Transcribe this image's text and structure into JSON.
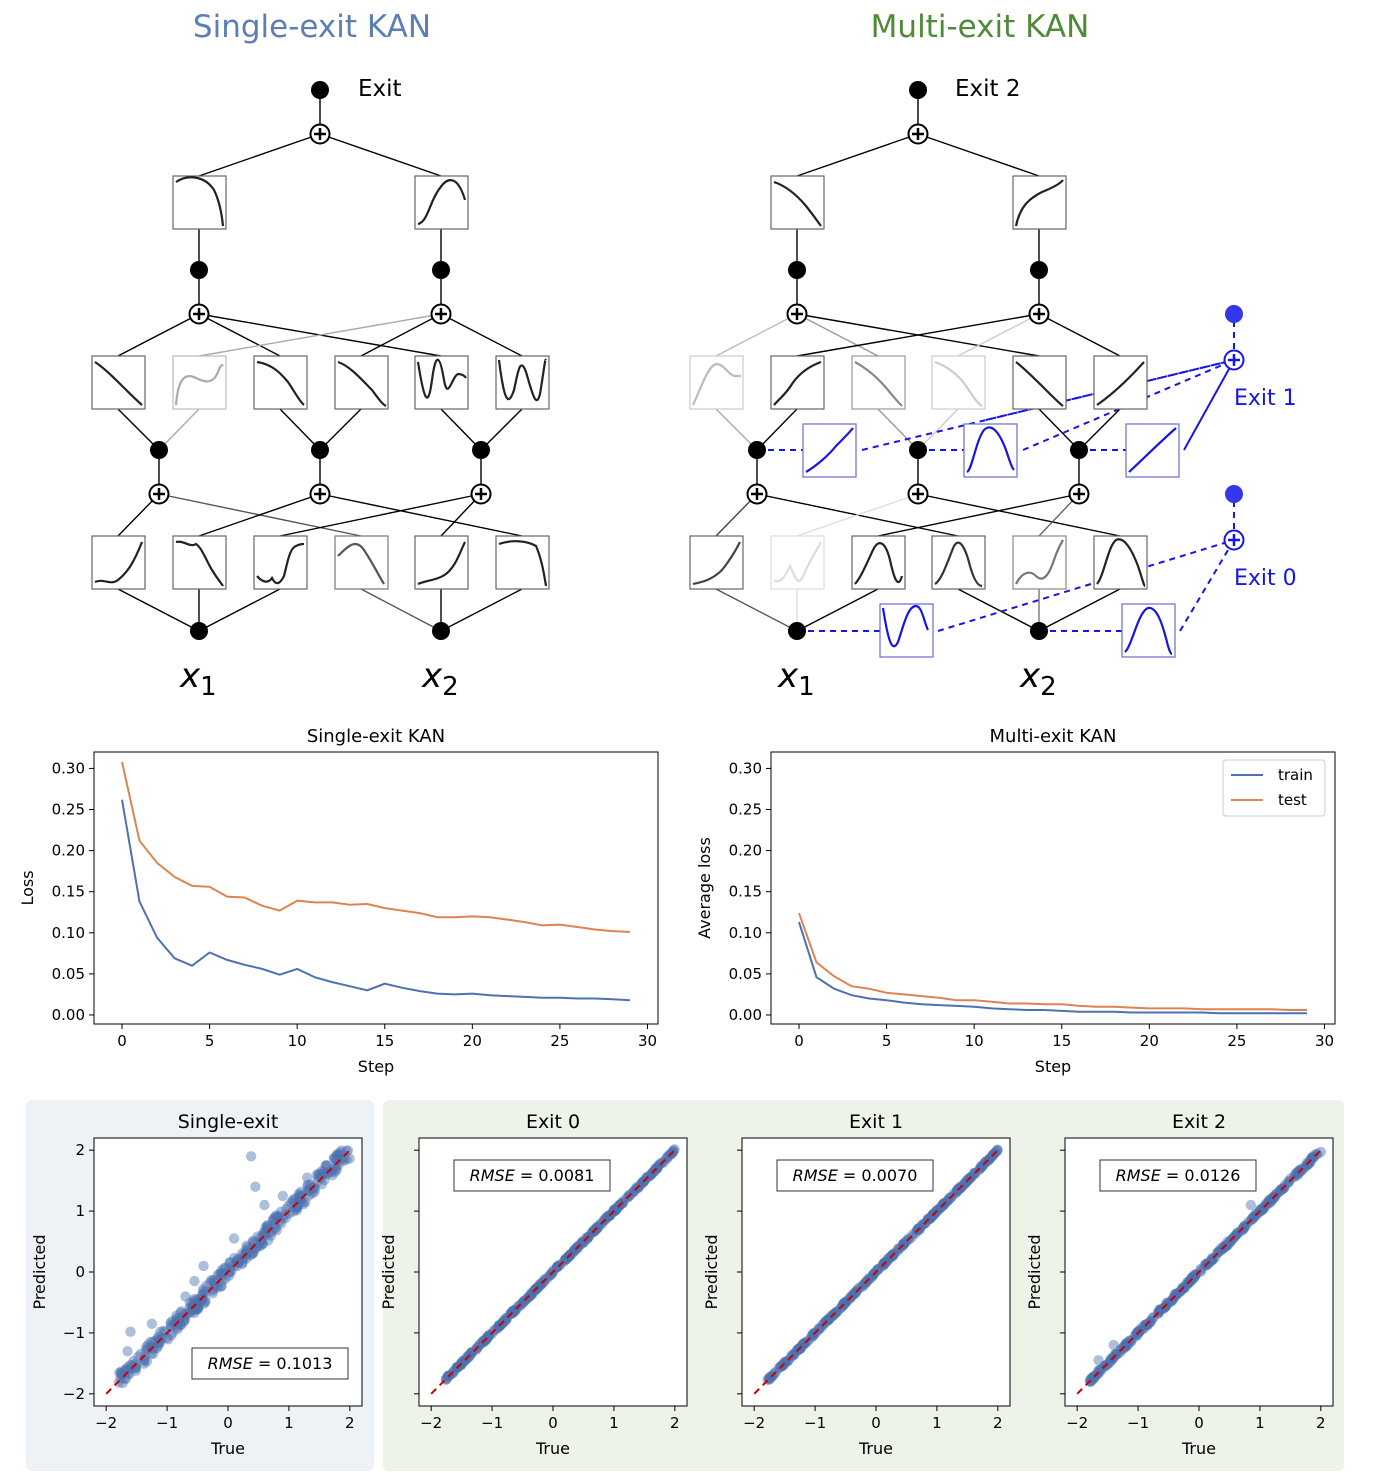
{
  "diagrams": {
    "single_title": "Single-exit KAN",
    "multi_title": "Multi-exit KAN",
    "single_exit_label": "Exit",
    "multi_exit2_label": "Exit 2",
    "multi_exit1_label": "Exit 1",
    "multi_exit0_label": "Exit 0",
    "input1_base": "x",
    "input1_sub": "1",
    "input2_base": "x",
    "input2_sub": "2",
    "title_colors": {
      "single": "#5b7fb5",
      "multi": "#4f8a37"
    },
    "exit_color": "#1515e6"
  },
  "chart_data": [
    {
      "type": "line",
      "title": "Single-exit KAN",
      "xlabel": "Step",
      "ylabel": "Loss",
      "xlim": [
        -1.6,
        30.6
      ],
      "ylim": [
        -0.011,
        0.32
      ],
      "xticks": [
        0,
        5,
        10,
        15,
        20,
        25,
        30
      ],
      "yticks": [
        0.0,
        0.05,
        0.1,
        0.15,
        0.2,
        0.25,
        0.3
      ],
      "series": [
        {
          "name": "train",
          "color": "#4c72b0",
          "values": [
            0.262,
            0.138,
            0.094,
            0.069,
            0.06,
            0.076,
            0.067,
            0.061,
            0.056,
            0.049,
            0.056,
            0.046,
            0.04,
            0.035,
            0.03,
            0.038,
            0.033,
            0.029,
            0.026,
            0.025,
            0.026,
            0.024,
            0.023,
            0.022,
            0.021,
            0.021,
            0.02,
            0.02,
            0.019,
            0.018
          ]
        },
        {
          "name": "test",
          "color": "#dd8452",
          "values": [
            0.308,
            0.212,
            0.185,
            0.168,
            0.157,
            0.156,
            0.144,
            0.143,
            0.133,
            0.127,
            0.139,
            0.137,
            0.137,
            0.134,
            0.135,
            0.13,
            0.127,
            0.124,
            0.119,
            0.119,
            0.12,
            0.119,
            0.116,
            0.113,
            0.109,
            0.11,
            0.107,
            0.104,
            0.102,
            0.101
          ]
        }
      ],
      "x": [
        0,
        1,
        2,
        3,
        4,
        5,
        6,
        7,
        8,
        9,
        10,
        11,
        12,
        13,
        14,
        15,
        16,
        17,
        18,
        19,
        20,
        21,
        22,
        23,
        24,
        25,
        26,
        27,
        28,
        29
      ]
    },
    {
      "type": "line",
      "title": "Multi-exit KAN",
      "xlabel": "Step",
      "ylabel": "Average loss",
      "xlim": [
        -1.6,
        30.6
      ],
      "ylim": [
        -0.011,
        0.32
      ],
      "legend": "top-right",
      "xticks": [
        0,
        5,
        10,
        15,
        20,
        25,
        30
      ],
      "yticks": [
        0.0,
        0.05,
        0.1,
        0.15,
        0.2,
        0.25,
        0.3
      ],
      "series": [
        {
          "name": "train",
          "color": "#4c72b0",
          "values": [
            0.113,
            0.046,
            0.032,
            0.024,
            0.02,
            0.018,
            0.015,
            0.013,
            0.012,
            0.011,
            0.01,
            0.008,
            0.007,
            0.006,
            0.006,
            0.005,
            0.004,
            0.004,
            0.004,
            0.003,
            0.003,
            0.003,
            0.003,
            0.003,
            0.002,
            0.002,
            0.002,
            0.002,
            0.002,
            0.002
          ]
        },
        {
          "name": "test",
          "color": "#dd8452",
          "values": [
            0.124,
            0.064,
            0.047,
            0.035,
            0.032,
            0.027,
            0.025,
            0.023,
            0.021,
            0.018,
            0.018,
            0.016,
            0.014,
            0.014,
            0.013,
            0.013,
            0.011,
            0.01,
            0.01,
            0.009,
            0.008,
            0.008,
            0.008,
            0.007,
            0.007,
            0.007,
            0.007,
            0.007,
            0.006,
            0.006
          ]
        }
      ],
      "x": [
        0,
        1,
        2,
        3,
        4,
        5,
        6,
        7,
        8,
        9,
        10,
        11,
        12,
        13,
        14,
        15,
        16,
        17,
        18,
        19,
        20,
        21,
        22,
        23,
        24,
        25,
        26,
        27,
        28,
        29
      ]
    },
    {
      "type": "scatter",
      "title": "Single-exit",
      "xlabel": "True",
      "ylabel": "Predicted",
      "xlim": [
        -2.2,
        2.2
      ],
      "ylim": [
        -2.2,
        2.2
      ],
      "xticks": [
        -2,
        -1,
        0,
        1,
        2
      ],
      "yticks": [
        -2,
        -1,
        0,
        1,
        2
      ],
      "annotation": "RMSE = 0.1013",
      "annotation_label": "RMSE",
      "annotation_value": "= 0.1013",
      "annotation_position": "bottom-right",
      "diagonal": {
        "from": [
          -2,
          -2
        ],
        "to": [
          2,
          2
        ],
        "color": "#cc0000",
        "style": "dashed"
      },
      "noise": 0.1013,
      "outliers": [
        [
          -1.6,
          -0.98
        ],
        [
          -1.65,
          -1.3
        ],
        [
          0.38,
          1.9
        ],
        [
          0.45,
          1.4
        ],
        [
          -0.7,
          -0.4
        ],
        [
          -0.4,
          0.1
        ],
        [
          0.6,
          1.1
        ],
        [
          0.1,
          0.55
        ],
        [
          -1.25,
          -0.85
        ],
        [
          0.9,
          1.25
        ],
        [
          1.3,
          1.55
        ],
        [
          -0.55,
          -0.15
        ]
      ]
    },
    {
      "type": "scatter",
      "title": "Exit 0",
      "xlabel": "True",
      "ylabel": "Predicted",
      "xlim": [
        -2.2,
        2.2
      ],
      "ylim": [
        -2.2,
        2.2
      ],
      "xticks": [
        -2,
        -1,
        0,
        1,
        2
      ],
      "annotation": "RMSE = 0.0081",
      "annotation_label": "RMSE",
      "annotation_value": "= 0.0081",
      "annotation_position": "top-left",
      "diagonal": {
        "from": [
          -2,
          -2
        ],
        "to": [
          2,
          2
        ],
        "color": "#cc0000",
        "style": "dashed"
      },
      "noise": 0.02,
      "outliers": []
    },
    {
      "type": "scatter",
      "title": "Exit 1",
      "xlabel": "True",
      "ylabel": "Predicted",
      "xlim": [
        -2.2,
        2.2
      ],
      "ylim": [
        -2.2,
        2.2
      ],
      "xticks": [
        -2,
        -1,
        0,
        1,
        2
      ],
      "annotation": "RMSE = 0.0070",
      "annotation_label": "RMSE",
      "annotation_value": "= 0.0070",
      "annotation_position": "top-left",
      "diagonal": {
        "from": [
          -2,
          -2
        ],
        "to": [
          2,
          2
        ],
        "color": "#cc0000",
        "style": "dashed"
      },
      "noise": 0.018,
      "outliers": []
    },
    {
      "type": "scatter",
      "title": "Exit 2",
      "xlabel": "True",
      "ylabel": "Predicted",
      "xlim": [
        -2.2,
        2.2
      ],
      "ylim": [
        -2.2,
        2.2
      ],
      "xticks": [
        -2,
        -1,
        0,
        1,
        2
      ],
      "annotation": "RMSE = 0.0126",
      "annotation_label": "RMSE",
      "annotation_value": "= 0.0126",
      "annotation_position": "top-left",
      "diagonal": {
        "from": [
          -2,
          -2
        ],
        "to": [
          2,
          2
        ],
        "color": "#cc0000",
        "style": "dashed"
      },
      "noise": 0.03,
      "outliers": [
        [
          0.85,
          1.1
        ],
        [
          -1.4,
          -1.2
        ],
        [
          -1.65,
          -1.45
        ]
      ]
    }
  ]
}
